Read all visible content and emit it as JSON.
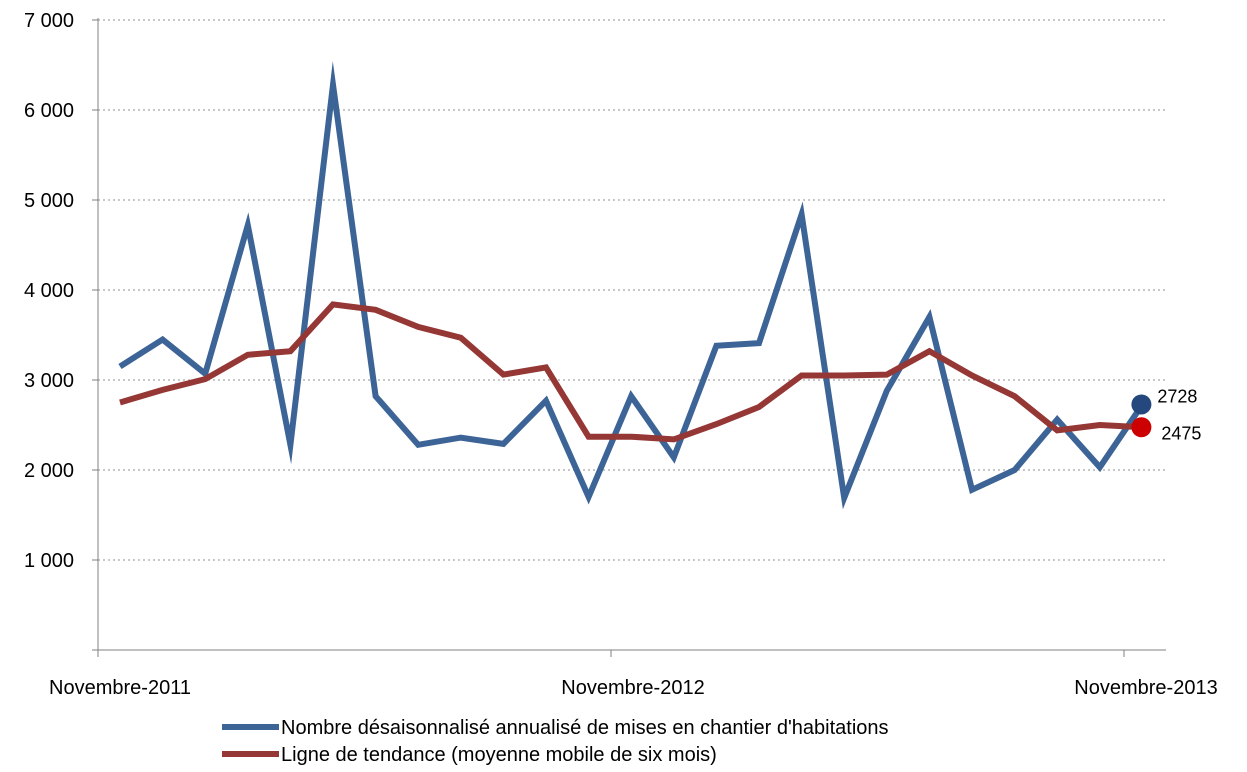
{
  "chart_data": {
    "type": "line",
    "title": "",
    "xlabel": "",
    "ylabel": "",
    "x_tick_labels": [
      "Novembre-2011",
      "Novembre-2012",
      "Novembre-2013"
    ],
    "x_tick_indices": [
      0,
      12,
      24
    ],
    "ylim": [
      0,
      7000
    ],
    "y_ticks": [
      0,
      1000,
      2000,
      3000,
      4000,
      5000,
      6000,
      7000
    ],
    "y_tick_labels": [
      "",
      "1 000",
      "2 000",
      "3 000",
      "4 000",
      "5 000",
      "6 000",
      "7 000"
    ],
    "grid": "horizontal-dotted",
    "legend_position": "bottom",
    "series": [
      {
        "name": "Nombre désaisonnalisé annualisé de mises en chantier d'habitations",
        "color": "#3d6496",
        "values": [
          3150,
          3450,
          3070,
          4720,
          2280,
          6280,
          2820,
          2280,
          2360,
          2290,
          2770,
          1700,
          2820,
          2140,
          3380,
          3410,
          4840,
          1690,
          2880,
          3700,
          1780,
          2000,
          2560,
          2030,
          2728
        ]
      },
      {
        "name": "Ligne de tendance (moyenne mobile de six mois)",
        "color": "#953735",
        "values": [
          2750,
          2890,
          3010,
          3280,
          3320,
          3840,
          3780,
          3590,
          3470,
          3060,
          3140,
          2370,
          2370,
          2340,
          2510,
          2700,
          3050,
          3050,
          3060,
          3320,
          3050,
          2820,
          2440,
          2500,
          2475
        ]
      }
    ],
    "end_markers": [
      {
        "label": "2728",
        "value": 2728,
        "color": "#24487d"
      },
      {
        "label": "2475",
        "value": 2475,
        "color": "#cc0000"
      }
    ]
  }
}
